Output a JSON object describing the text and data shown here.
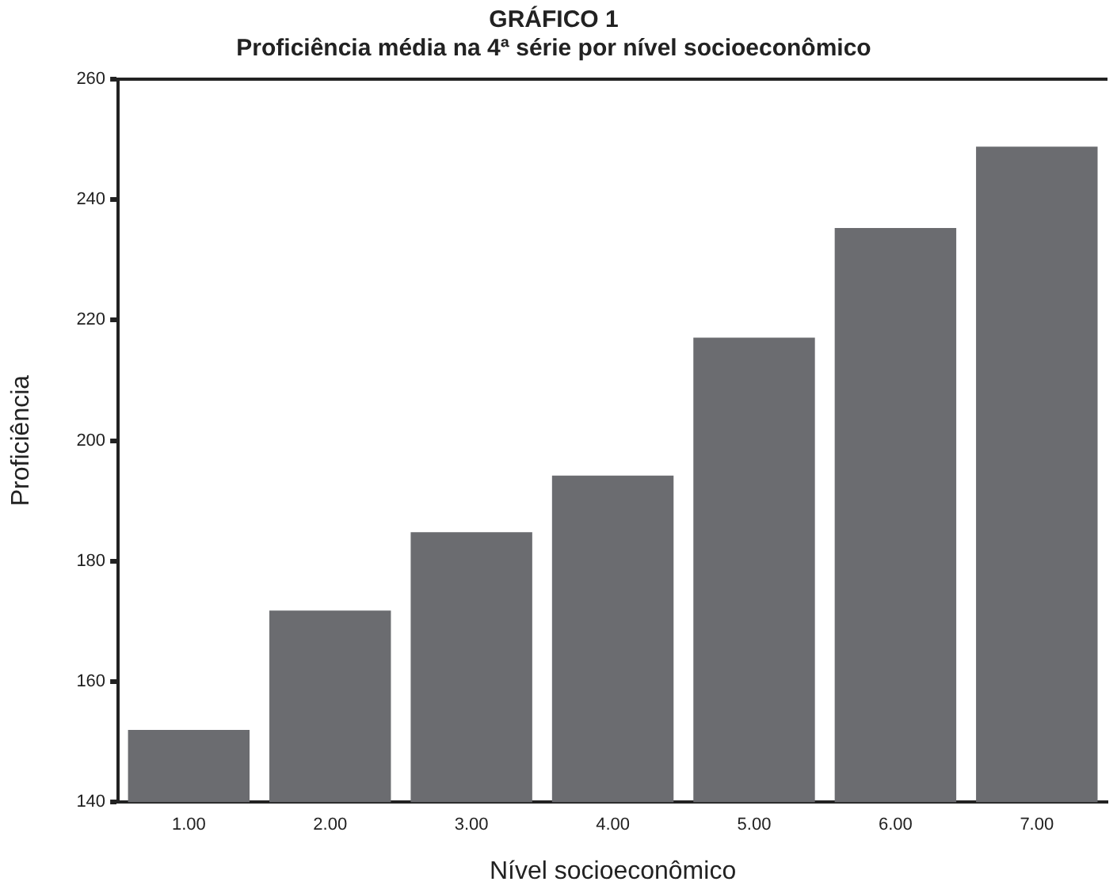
{
  "chart_data": {
    "type": "bar",
    "title": "GRÁFICO 1",
    "subtitle": "Proficiência média na 4ª série por nível socioeconômico",
    "xlabel": "Nível socioeconômico",
    "ylabel": "Proficiência",
    "categories": [
      "1.00",
      "2.00",
      "3.00",
      "4.00",
      "5.00",
      "6.00",
      "7.00"
    ],
    "values": [
      152,
      171.8,
      184.8,
      194.2,
      217.1,
      235.3,
      248.8
    ],
    "color": "#6b6c70",
    "ylim": [
      140,
      260
    ],
    "yticks": [
      140,
      160,
      180,
      200,
      220,
      240,
      260
    ],
    "grid": false,
    "legend": false
  }
}
